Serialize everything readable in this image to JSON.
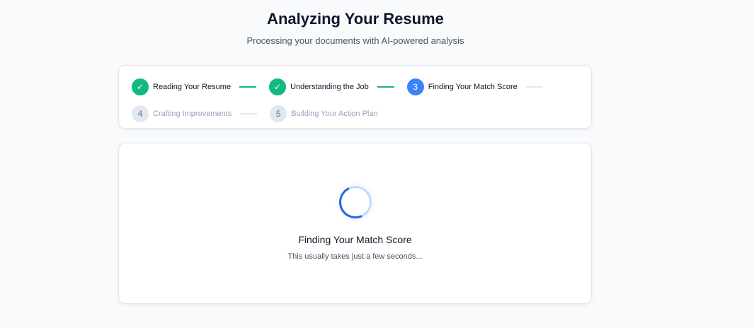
{
  "header": {
    "title": "Analyzing Your Resume",
    "subtitle": "Processing your documents with AI-powered analysis"
  },
  "steps": [
    {
      "marker": "✓",
      "label": "Reading Your Resume",
      "status": "done"
    },
    {
      "marker": "✓",
      "label": "Understanding the Job",
      "status": "done"
    },
    {
      "marker": "3",
      "label": "Finding Your Match Score",
      "status": "active"
    },
    {
      "marker": "4",
      "label": "Crafting Improvements",
      "status": "pending"
    },
    {
      "marker": "5",
      "label": "Building Your Action Plan",
      "status": "pending"
    }
  ],
  "loading": {
    "title": "Finding Your Match Score",
    "message": "This usually takes just a few seconds..."
  },
  "colors": {
    "done": "#10b981",
    "active": "#3b82f6",
    "pending": "#e2e8f0"
  }
}
